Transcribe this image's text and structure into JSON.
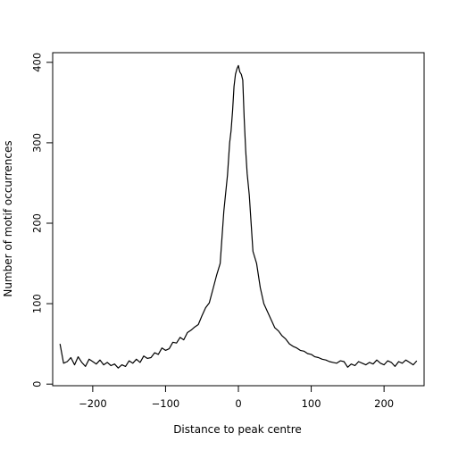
{
  "chart_data": {
    "type": "line",
    "title": "",
    "xlabel": "Distance to peak centre",
    "ylabel": "Number of motif occurrences",
    "xlim": [
      -255,
      255
    ],
    "ylim": [
      -2,
      412
    ],
    "x_ticks": [
      -200,
      -100,
      0,
      100,
      200
    ],
    "x_tick_labels": [
      "−200",
      "−100",
      "0",
      "100",
      "200"
    ],
    "y_ticks": [
      0,
      100,
      200,
      300,
      400
    ],
    "y_tick_labels": [
      "0",
      "100",
      "200",
      "300",
      "400"
    ],
    "grid": false,
    "line_color": "#000000",
    "series": [
      {
        "x": [
          -245,
          -240,
          -235,
          -230,
          -225,
          -220,
          -215,
          -210,
          -205,
          -200,
          -195,
          -190,
          -185,
          -180,
          -175,
          -170,
          -165,
          -160,
          -155,
          -150,
          -145,
          -140,
          -135,
          -130,
          -125,
          -120,
          -115,
          -110,
          -105,
          -100,
          -95,
          -90,
          -85,
          -80,
          -75,
          -70,
          -65,
          -60,
          -55,
          -50,
          -45,
          -40,
          -35,
          -30,
          -25,
          -20,
          -15,
          -12,
          -10,
          -8,
          -6,
          -4,
          -2,
          0,
          2,
          4,
          6,
          8,
          10,
          12,
          15,
          20,
          25,
          30,
          35,
          40,
          45,
          50,
          55,
          60,
          65,
          70,
          75,
          80,
          85,
          90,
          95,
          100,
          105,
          110,
          115,
          120,
          125,
          130,
          135,
          140,
          145,
          150,
          155,
          160,
          165,
          170,
          175,
          180,
          185,
          190,
          195,
          200,
          205,
          210,
          215,
          220,
          225,
          230,
          235,
          240,
          245
        ],
        "y": [
          50,
          26,
          28,
          33,
          24,
          34,
          27,
          22,
          31,
          28,
          25,
          30,
          24,
          27,
          23,
          25,
          20,
          24,
          22,
          29,
          26,
          31,
          27,
          35,
          32,
          33,
          39,
          37,
          45,
          42,
          44,
          52,
          51,
          58,
          55,
          64,
          67,
          71,
          74,
          85,
          95,
          101,
          118,
          135,
          150,
          215,
          260,
          300,
          315,
          340,
          370,
          385,
          392,
          396,
          388,
          385,
          378,
          330,
          290,
          262,
          235,
          165,
          150,
          120,
          100,
          90,
          80,
          70,
          66,
          60,
          56,
          50,
          47,
          45,
          42,
          41,
          38,
          37,
          34,
          33,
          31,
          30,
          28,
          27,
          26,
          29,
          28,
          21,
          25,
          23,
          28,
          26,
          24,
          27,
          25,
          30,
          26,
          24,
          29,
          27,
          22,
          28,
          26,
          30,
          27,
          24,
          29
        ]
      }
    ]
  }
}
